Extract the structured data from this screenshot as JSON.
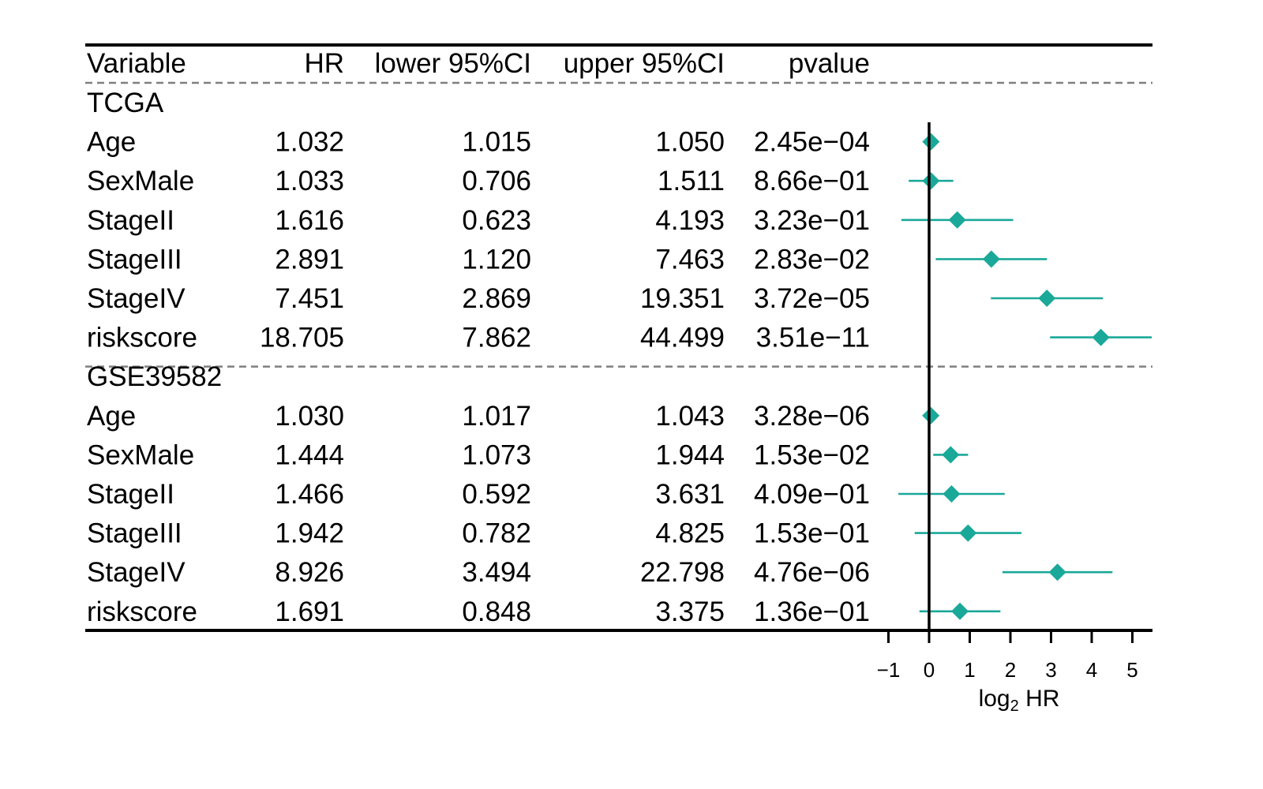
{
  "chart_data": {
    "type": "forest",
    "columns": [
      "Variable",
      "HR",
      "lower 95%CI",
      "upper 95%CI",
      "pvalue"
    ],
    "groups": [
      {
        "name": "TCGA",
        "rows": [
          {
            "variable": "Age",
            "hr": "1.032",
            "lower": "1.015",
            "upper": "1.050",
            "pvalue": "2.45e−04"
          },
          {
            "variable": "SexMale",
            "hr": "1.033",
            "lower": "0.706",
            "upper": "1.511",
            "pvalue": "8.66e−01"
          },
          {
            "variable": "StageII",
            "hr": "1.616",
            "lower": "0.623",
            "upper": "4.193",
            "pvalue": "3.23e−01"
          },
          {
            "variable": "StageIII",
            "hr": "2.891",
            "lower": "1.120",
            "upper": "7.463",
            "pvalue": "2.83e−02"
          },
          {
            "variable": "StageIV",
            "hr": "7.451",
            "lower": "2.869",
            "upper": "19.351",
            "pvalue": "3.72e−05"
          },
          {
            "variable": "riskscore",
            "hr": "18.705",
            "lower": "7.862",
            "upper": "44.499",
            "pvalue": "3.51e−11"
          }
        ]
      },
      {
        "name": "GSE39582",
        "rows": [
          {
            "variable": "Age",
            "hr": "1.030",
            "lower": "1.017",
            "upper": "1.043",
            "pvalue": "3.28e−06"
          },
          {
            "variable": "SexMale",
            "hr": "1.444",
            "lower": "1.073",
            "upper": "1.944",
            "pvalue": "1.53e−02"
          },
          {
            "variable": "StageII",
            "hr": "1.466",
            "lower": "0.592",
            "upper": "3.631",
            "pvalue": "4.09e−01"
          },
          {
            "variable": "StageIII",
            "hr": "1.942",
            "lower": "0.782",
            "upper": "4.825",
            "pvalue": "1.53e−01"
          },
          {
            "variable": "StageIV",
            "hr": "8.926",
            "lower": "3.494",
            "upper": "22.798",
            "pvalue": "4.76e−06"
          },
          {
            "variable": "riskscore",
            "hr": "1.691",
            "lower": "0.848",
            "upper": "3.375",
            "pvalue": "1.36e−01"
          }
        ]
      }
    ],
    "x_axis": {
      "label_main": "log",
      "label_sub": "2",
      "label_tail": " HR",
      "ticks": [
        "−1",
        "0",
        "1",
        "2",
        "3",
        "4",
        "5"
      ],
      "tick_values": [
        -1,
        0,
        1,
        2,
        3,
        4,
        5
      ],
      "xlim": [
        -1,
        5.5
      ],
      "reference_line": 0
    },
    "colors": {
      "marker": "#1aa899",
      "line": "#000000",
      "dashed": "#7f7f7f"
    }
  }
}
